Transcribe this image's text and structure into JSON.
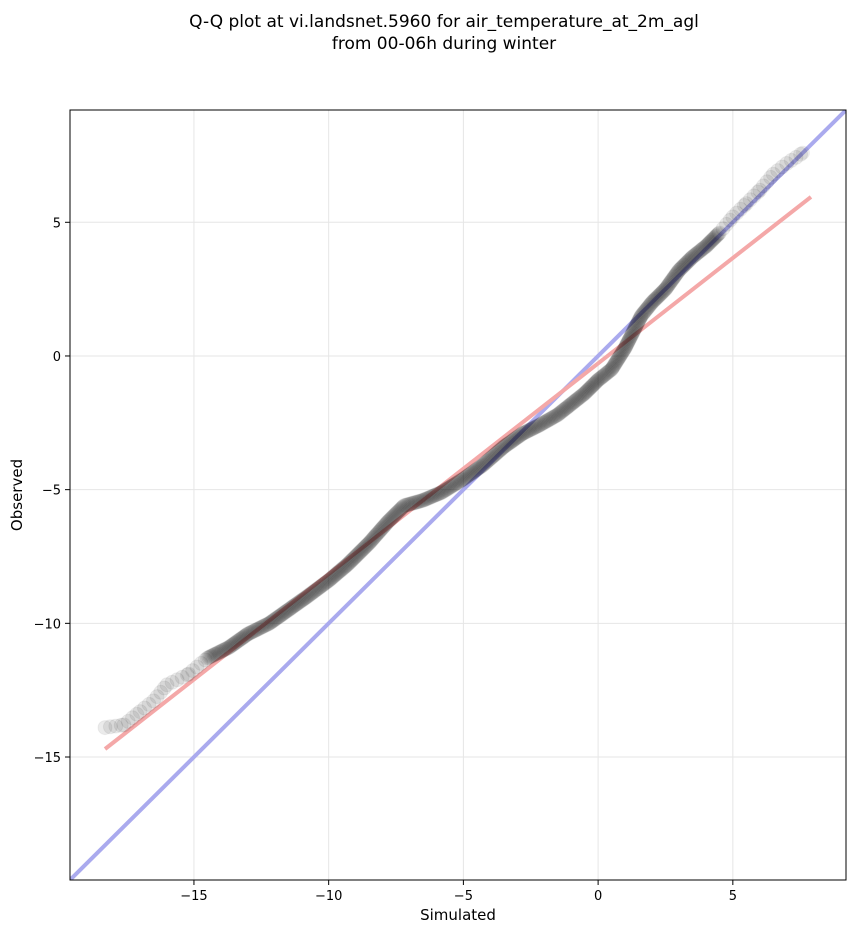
{
  "chart_data": {
    "type": "scatter",
    "title_lines": [
      "Q-Q plot at vi.landsnet.5960 for air_temperature_at_2m_agl",
      "from 00-06h during winter"
    ],
    "xlabel": "Simulated",
    "ylabel": "Observed",
    "xlim": [
      -19.6,
      9.2
    ],
    "ylim": [
      -19.6,
      9.2
    ],
    "xticks": [
      -15,
      -10,
      -5,
      0,
      5
    ],
    "yticks": [
      5,
      0,
      -5,
      -10,
      -15
    ],
    "xtick_labels": [
      "−15",
      "−10",
      "−5",
      "0",
      "5"
    ],
    "ytick_labels": [
      "5",
      "0",
      "−5",
      "−10",
      "−15"
    ],
    "grid": true,
    "colors": {
      "points": "#000000",
      "identity_line": "#aaaaee",
      "fit_line": "#f4a8a8"
    },
    "identity_line": {
      "x": [
        -19.6,
        9.2
      ],
      "y": [
        -19.6,
        9.2
      ]
    },
    "fit_line": {
      "x": [
        -18.3,
        7.9
      ],
      "y": [
        -14.7,
        5.95
      ]
    },
    "quantile_curve": {
      "x": [
        -18.3,
        -17.6,
        -17.0,
        -16.5,
        -16.0,
        -15.2,
        -14.5,
        -13.7,
        -13.0,
        -12.2,
        -11.5,
        -10.8,
        -10.0,
        -9.3,
        -8.5,
        -7.8,
        -7.2,
        -6.5,
        -5.8,
        -5.0,
        -4.3,
        -3.5,
        -2.8,
        -2.2,
        -1.5,
        -1.0,
        -0.5,
        0.0,
        0.5,
        1.0,
        1.3,
        1.6,
        2.0,
        2.5,
        3.0,
        3.5,
        4.0,
        4.5,
        5.0,
        5.5,
        6.0,
        6.5,
        7.0,
        7.6
      ],
      "y": [
        -13.9,
        -13.8,
        -13.3,
        -12.9,
        -12.3,
        -11.9,
        -11.3,
        -10.9,
        -10.4,
        -10.0,
        -9.5,
        -9.0,
        -8.4,
        -7.8,
        -7.0,
        -6.2,
        -5.6,
        -5.4,
        -5.1,
        -4.6,
        -4.1,
        -3.4,
        -2.9,
        -2.6,
        -2.2,
        -1.8,
        -1.4,
        -0.9,
        -0.5,
        0.3,
        0.9,
        1.5,
        2.0,
        2.5,
        3.2,
        3.7,
        4.1,
        4.6,
        5.2,
        5.7,
        6.2,
        6.8,
        7.2,
        7.6
      ]
    }
  }
}
